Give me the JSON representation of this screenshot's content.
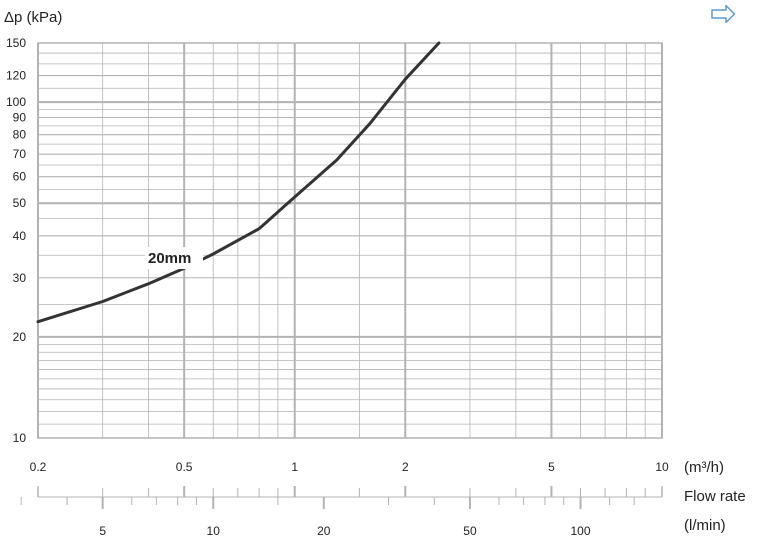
{
  "arrow_icon": "right-arrow-icon",
  "colors": {
    "grid": "#b3b3b3",
    "curve": "#333333",
    "arrow": "#5b9bd5"
  },
  "chart_data": {
    "type": "line",
    "scale": {
      "x": "log",
      "y": "log"
    },
    "grid": true,
    "ylabel": "Δp (kPa)",
    "xlabel_unit": "(m³/h)",
    "xlabel_title": "Flow rate",
    "xlabel_secondary_unit": "(l/min)",
    "xlim": [
      0.2,
      10
    ],
    "ylim": [
      10,
      150
    ],
    "y_ticks": [
      10,
      20,
      30,
      40,
      50,
      60,
      70,
      80,
      90,
      100,
      120,
      150
    ],
    "x_ticks": [
      0.2,
      0.5,
      1,
      2,
      5,
      10
    ],
    "x_secondary_ticks": [
      5,
      10,
      20,
      50,
      100
    ],
    "series": [
      {
        "name": "20mm",
        "x": [
          0.2,
          0.3,
          0.4,
          0.5,
          0.6,
          0.8,
          1.0,
          1.3,
          1.6,
          2.0,
          2.47
        ],
        "y": [
          22.2,
          25.5,
          28.8,
          32.0,
          35.3,
          42.0,
          52.2,
          67.2,
          86.2,
          117.0,
          150.0
        ]
      }
    ],
    "series_label": "20mm"
  }
}
